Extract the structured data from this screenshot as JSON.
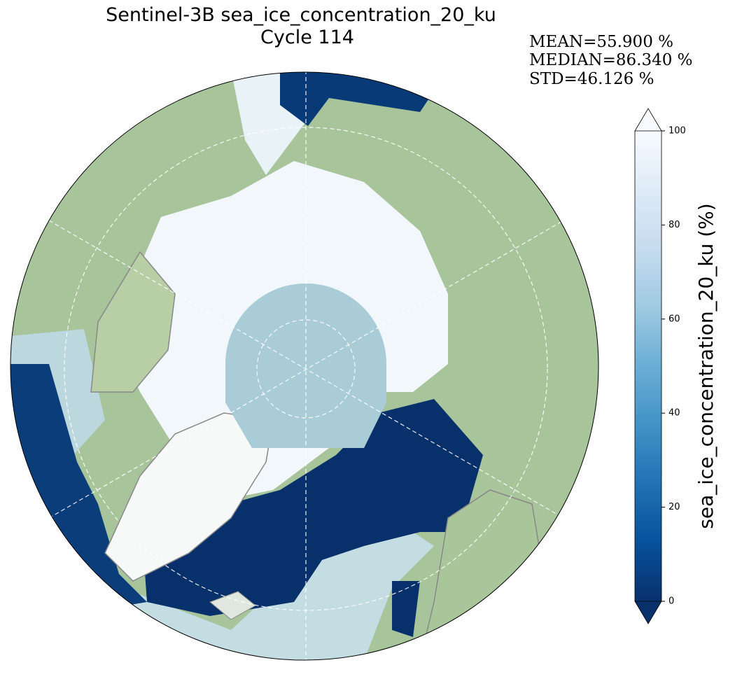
{
  "map": {
    "title": [
      "Sentinel-3B sea_ice_concentration_20_ku",
      "Cycle 114"
    ],
    "stats": [
      "MEAN=55.900 %",
      "MEDIAN=86.340 %",
      "STD=46.126 %"
    ],
    "colorbar": {
      "label": "sea_ice_concentration_20_ku (%)",
      "lim": [
        0,
        100
      ],
      "ticks": [
        0,
        20,
        40,
        60,
        80,
        100
      ],
      "colors": [
        "#08306b",
        "#08519c",
        "#2171b5",
        "#4292c6",
        "#6baed6",
        "#9ecae1",
        "#c6dbef",
        "#deebf7",
        "#f7fbff"
      ]
    }
  }
}
